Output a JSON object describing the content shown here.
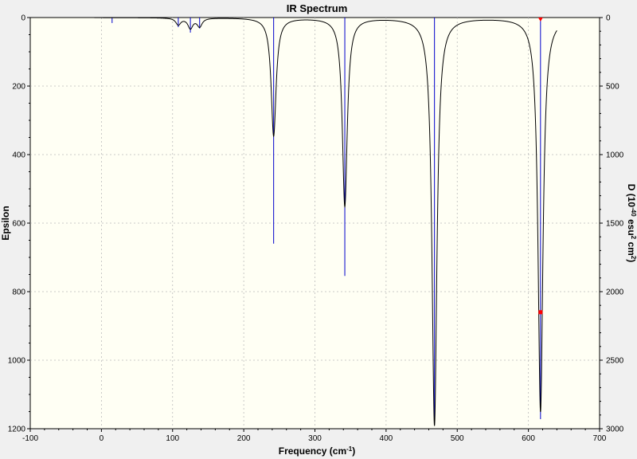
{
  "chart_data": {
    "type": "line",
    "title": "IR Spectrum",
    "xlabel": "Frequency",
    "xlabel_unit": "(cm",
    "xlabel_unit_sup": "-1",
    "xlabel_unit_close": ")",
    "ylabel_left": "Epsilon",
    "ylabel_right": "D (10",
    "ylabel_right_sup1": "-40",
    "ylabel_right_mid": " esu",
    "ylabel_right_sup2": "2",
    "ylabel_right_mid2": " cm",
    "ylabel_right_sup3": "2",
    "ylabel_right_close": ")",
    "xlim": [
      -100,
      700
    ],
    "ylim_left": [
      0,
      1200
    ],
    "ylim_right": [
      0,
      3000
    ],
    "y_inverted": true,
    "grid": true,
    "x_ticks": [
      "-100",
      "0",
      "100",
      "200",
      "300",
      "400",
      "500",
      "600",
      "700"
    ],
    "y_left_ticks": [
      "0",
      "200",
      "400",
      "600",
      "800",
      "1000",
      "1200"
    ],
    "y_right_ticks": [
      "0",
      "500",
      "1000",
      "1500",
      "2000",
      "2500",
      "3000"
    ],
    "x_tick_values": [
      -100,
      0,
      100,
      200,
      300,
      400,
      500,
      600,
      700
    ],
    "y_left_tick_values": [
      0,
      200,
      400,
      600,
      800,
      1000,
      1200
    ],
    "y_right_tick_values": [
      0,
      500,
      1000,
      1500,
      2000,
      2500,
      3000
    ],
    "spectrum_range": [
      -10,
      640
    ],
    "peaks": [
      {
        "freq": 15,
        "epsilon": 0,
        "stick_D": 40
      },
      {
        "freq": 108,
        "epsilon": 20,
        "stick_D": 70
      },
      {
        "freq": 125,
        "epsilon": 30,
        "stick_D": 110
      },
      {
        "freq": 138,
        "epsilon": 25,
        "stick_D": 80
      },
      {
        "freq": 242,
        "epsilon": 345,
        "stick_D": 1650
      },
      {
        "freq": 342,
        "epsilon": 550,
        "stick_D": 1885
      },
      {
        "freq": 468,
        "epsilon": 1190,
        "stick_D": 2950
      },
      {
        "freq": 617,
        "epsilon": 1150,
        "stick_D": 2930
      }
    ],
    "selected_marker": {
      "freq": 617,
      "D": 2150
    },
    "colors": {
      "spectrum": "#000000",
      "sticks": "#0000cc",
      "marker": "#ff0000",
      "plot_bg": "#fffff4",
      "grid": "#bbbbbb"
    }
  }
}
